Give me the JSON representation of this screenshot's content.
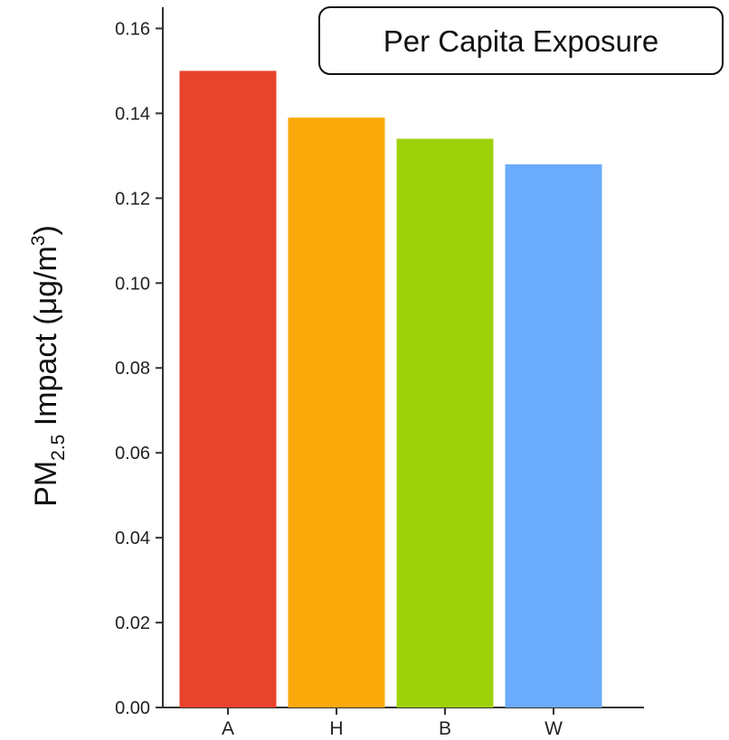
{
  "chart_data": {
    "type": "bar",
    "title": "Per Capita Exposure",
    "categories": [
      "A",
      "H",
      "B",
      "W"
    ],
    "values": [
      0.15,
      0.139,
      0.134,
      0.128
    ],
    "colors": [
      "#e8432c",
      "#fba90a",
      "#9fd10a",
      "#6aabfb"
    ],
    "ylabel": {
      "prefix": "PM",
      "subscript": "2.5",
      "middle": " Impact (μg/m",
      "superscript": "3",
      "suffix": ")"
    },
    "yticks": [
      "0.00",
      "0.02",
      "0.04",
      "0.06",
      "0.08",
      "0.10",
      "0.12",
      "0.14",
      "0.16"
    ],
    "ylim": [
      0,
      0.165
    ],
    "grid": false,
    "legend": "none"
  }
}
